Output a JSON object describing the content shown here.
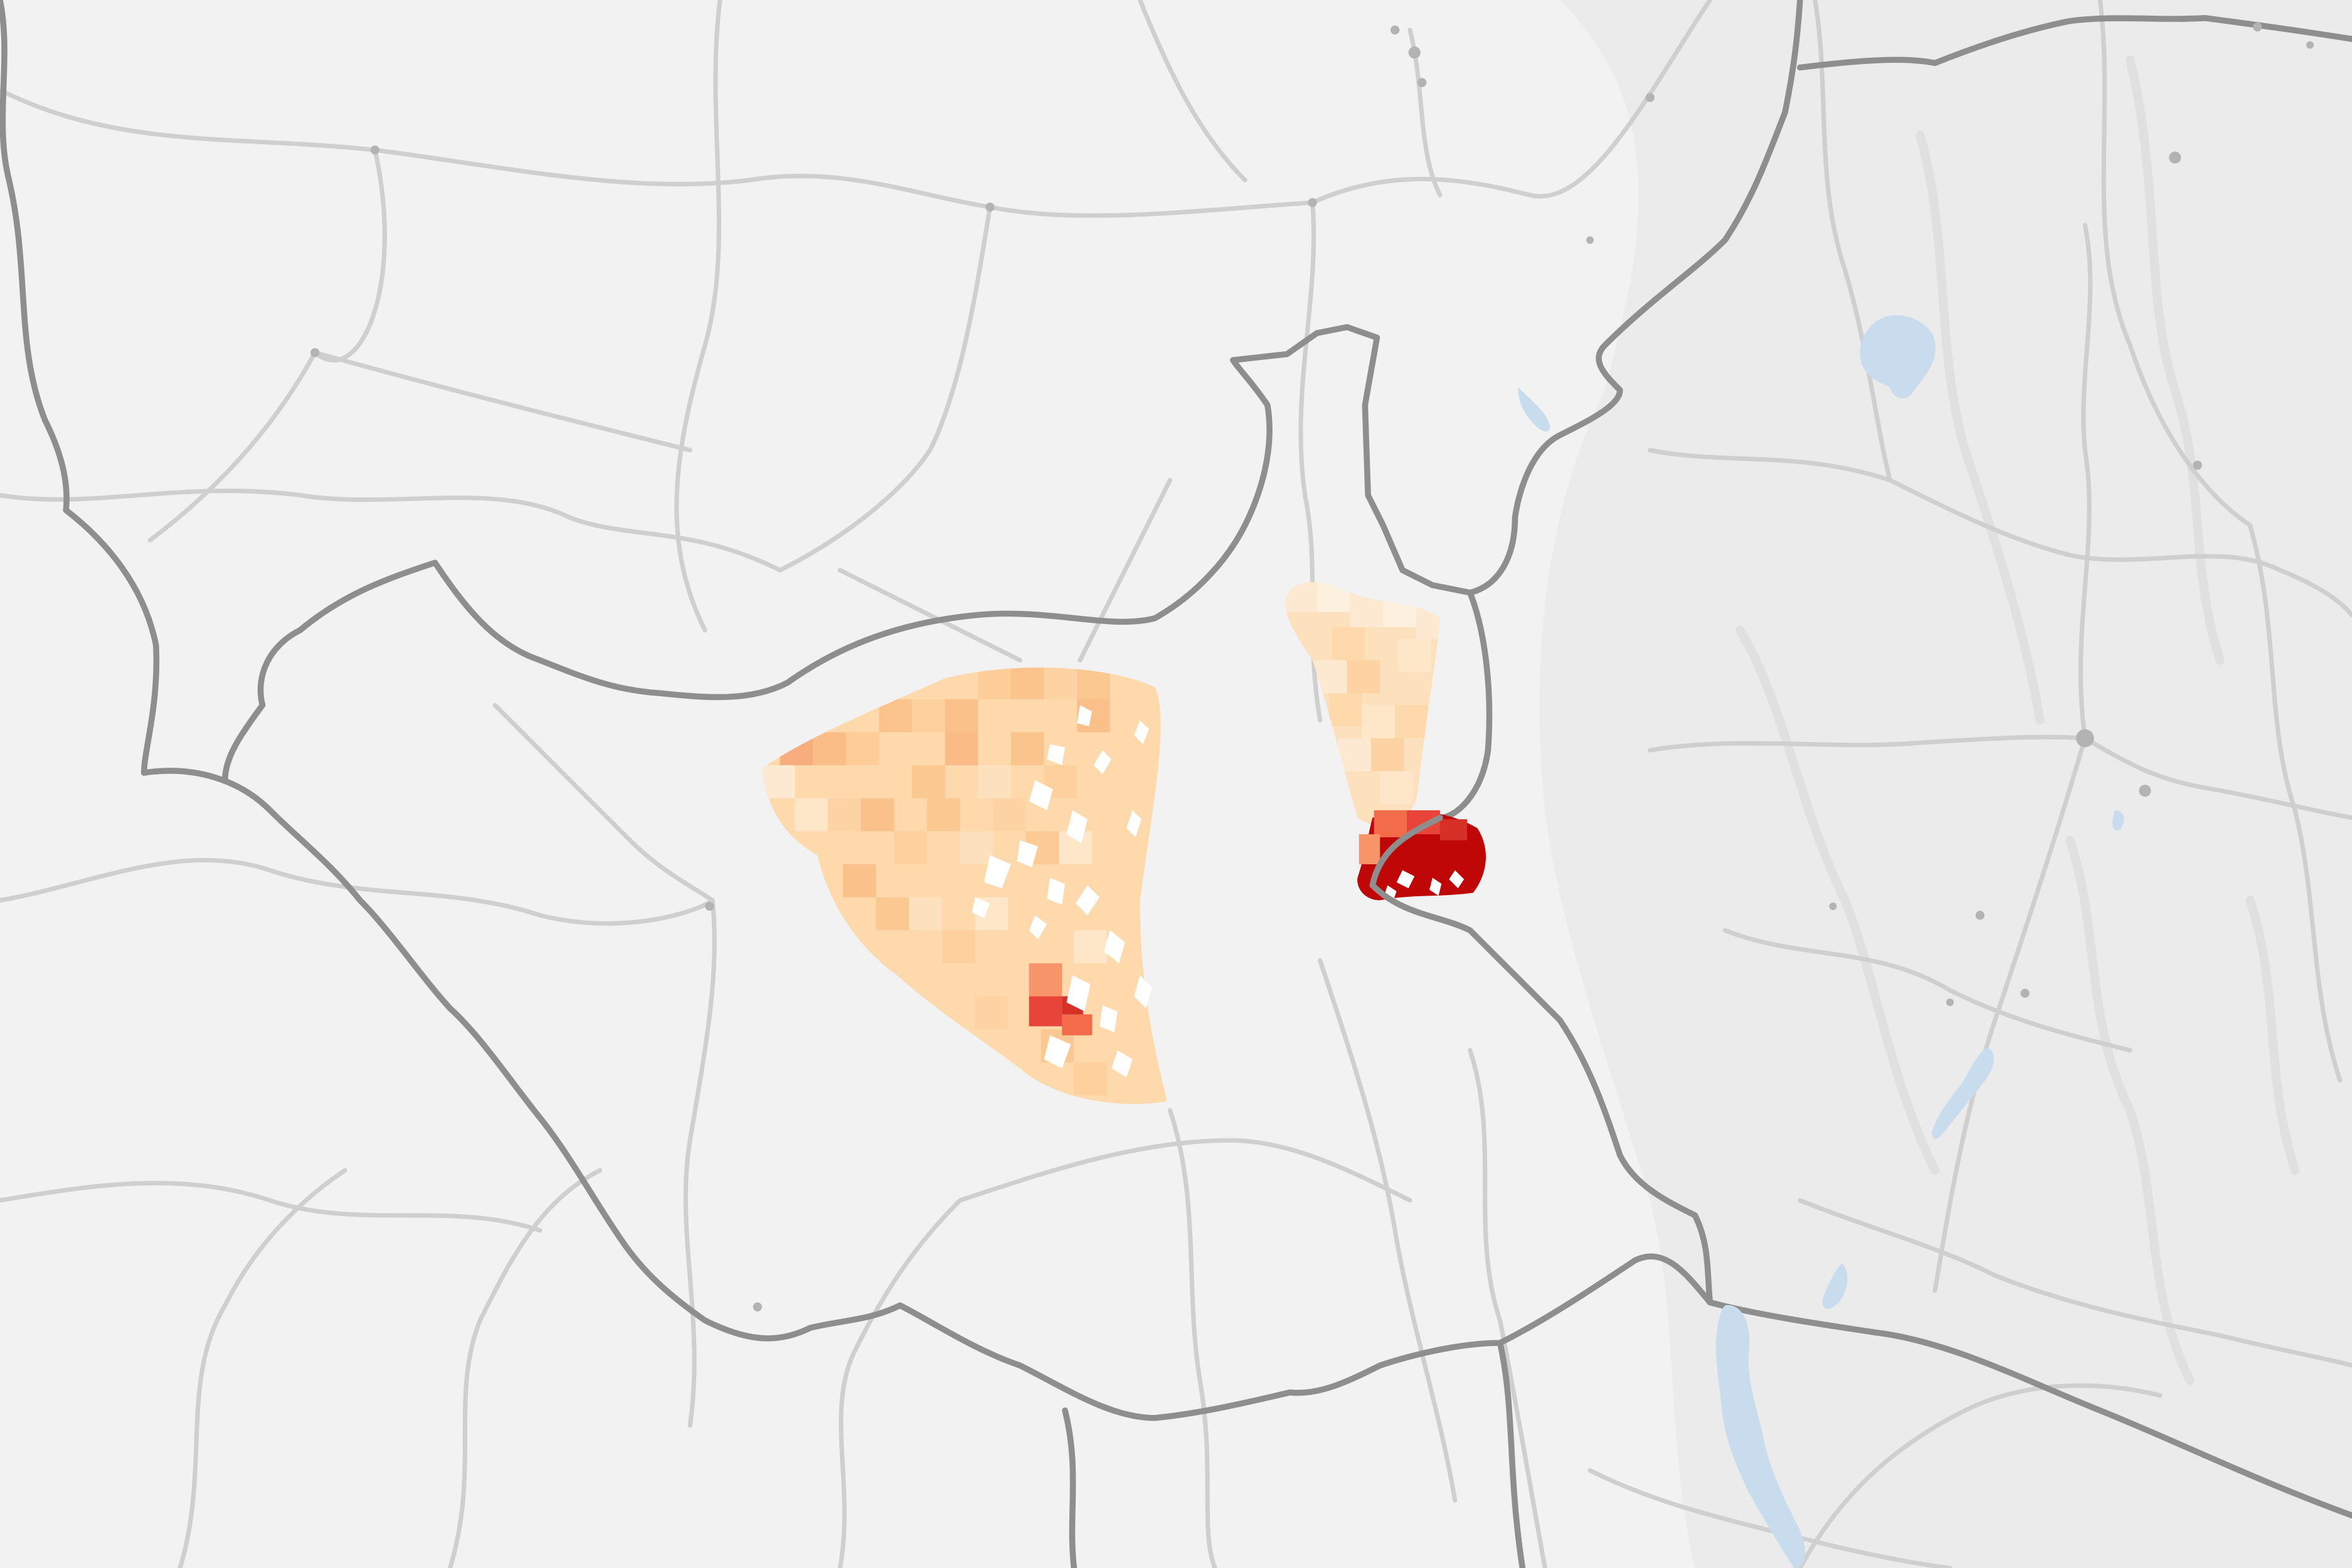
{
  "map": {
    "colors": {
      "background": "#f2f2f2",
      "hills": "#e9e9e9",
      "road": "#cfcfcf",
      "border": "#8e8e8e",
      "water": "#c8dcee",
      "settlement": "#b3b3b3",
      "scale_lightest": "#fde9d1",
      "scale_light": "#fdd9ac",
      "scale_mid": "#fcc48d",
      "scale_warm": "#f7a47c",
      "scale_hot": "#e8443a",
      "scale_max": "#c00707"
    }
  }
}
